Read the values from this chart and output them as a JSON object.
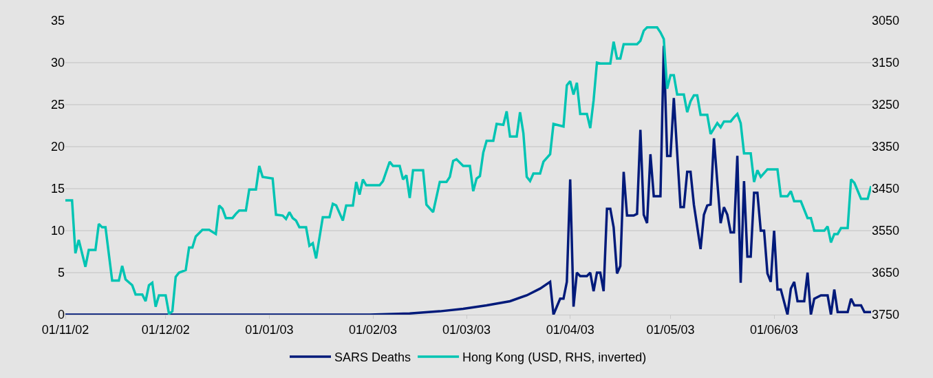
{
  "chart_data": {
    "type": "line",
    "ylim": [
      0,
      35
    ],
    "yticks": [
      0,
      5,
      10,
      15,
      20,
      25,
      30,
      35
    ],
    "y2lim": [
      3750,
      3050
    ],
    "y2ticks": [
      3050,
      3150,
      3250,
      3350,
      3450,
      3550,
      3650,
      3750
    ],
    "xlim": [
      "2002-11-01",
      "2003-06-30"
    ],
    "xticks": [
      {
        "value": "2002-11-01",
        "label": "01/11/02"
      },
      {
        "value": "2002-12-01",
        "label": "01/12/02"
      },
      {
        "value": "2003-01-01",
        "label": "01/01/03"
      },
      {
        "value": "2003-02-01",
        "label": "01/02/03"
      },
      {
        "value": "2003-03-01",
        "label": "01/03/03"
      },
      {
        "value": "2003-04-01",
        "label": "01/04/03"
      },
      {
        "value": "2003-05-01",
        "label": "01/05/03"
      },
      {
        "value": "2003-06-01",
        "label": "01/06/03"
      }
    ],
    "grid": "y",
    "legend": "bottom",
    "marker": "none",
    "line_style": "solid",
    "series": [
      {
        "name": "SARS Deaths",
        "color": "#001a7a",
        "x": [
          "2002-11-01",
          "2003-01-31",
          "2003-02-12",
          "2003-02-21",
          "2003-02-28",
          "2003-03-07",
          "2003-03-14",
          "2003-03-19",
          "2003-03-23",
          "2003-03-26",
          "2003-03-27",
          "2003-03-29",
          "2003-03-30",
          "2003-03-31",
          "2003-04-01",
          "2003-04-02",
          "2003-04-03",
          "2003-04-04",
          "2003-04-06",
          "2003-04-07",
          "2003-04-08",
          "2003-04-09",
          "2003-04-10",
          "2003-04-11",
          "2003-04-12",
          "2003-04-13",
          "2003-04-14",
          "2003-04-15",
          "2003-04-16",
          "2003-04-17",
          "2003-04-18",
          "2003-04-20",
          "2003-04-21",
          "2003-04-22",
          "2003-04-23",
          "2003-04-24",
          "2003-04-25",
          "2003-04-26",
          "2003-04-28",
          "2003-04-29",
          "2003-04-30",
          "2003-05-01",
          "2003-05-02",
          "2003-05-04",
          "2003-05-05",
          "2003-05-06",
          "2003-05-07",
          "2003-05-08",
          "2003-05-10",
          "2003-05-11",
          "2003-05-12",
          "2003-05-13",
          "2003-05-14",
          "2003-05-15",
          "2003-05-16",
          "2003-05-17",
          "2003-05-18",
          "2003-05-19",
          "2003-05-20",
          "2003-05-21",
          "2003-05-22",
          "2003-05-23",
          "2003-05-24",
          "2003-05-25",
          "2003-05-26",
          "2003-05-27",
          "2003-05-28",
          "2003-05-29",
          "2003-05-30",
          "2003-05-31",
          "2003-06-01",
          "2003-06-02",
          "2003-06-03",
          "2003-06-05",
          "2003-06-06",
          "2003-06-07",
          "2003-06-08",
          "2003-06-10",
          "2003-06-11",
          "2003-06-12",
          "2003-06-13",
          "2003-06-15",
          "2003-06-17",
          "2003-06-18",
          "2003-06-19",
          "2003-06-20",
          "2003-06-23",
          "2003-06-24",
          "2003-06-25",
          "2003-06-27",
          "2003-06-28",
          "2003-06-30"
        ],
        "values": [
          0,
          0,
          0.15,
          0.4,
          0.7,
          1.1,
          1.6,
          2.3,
          3.1,
          3.9,
          0,
          1.9,
          1.9,
          3.9,
          16.1,
          0.95,
          5.0,
          4.6,
          4.6,
          5.0,
          2.8,
          5.0,
          5.0,
          2.8,
          12.6,
          12.6,
          10.4,
          4.9,
          5.8,
          17.0,
          11.8,
          11.8,
          12.0,
          22.0,
          11.9,
          10.9,
          19.1,
          14.1,
          14.1,
          32.0,
          18.9,
          18.9,
          25.8,
          12.8,
          12.8,
          17.0,
          17.0,
          13.1,
          7.8,
          11.9,
          13.0,
          13.1,
          21.0,
          15.8,
          10.9,
          12.8,
          11.9,
          9.8,
          9.8,
          18.9,
          3.8,
          15.9,
          6.9,
          6.9,
          14.5,
          14.5,
          10.0,
          10.0,
          4.9,
          3.9,
          10.0,
          3.0,
          3.0,
          0,
          3.1,
          3.9,
          1.6,
          1.6,
          5.0,
          0,
          1.9,
          2.3,
          2.3,
          0,
          3.0,
          0.3,
          0.3,
          1.9,
          1.1,
          1.1,
          0.3,
          0.3
        ]
      },
      {
        "name": "Hong Kong (USD, RHS, inverted)",
        "color": "#00c4b3",
        "axis": "y2",
        "x": [
          "2002-11-01",
          "2002-11-03",
          "2002-11-04",
          "2002-11-05",
          "2002-11-07",
          "2002-11-08",
          "2002-11-10",
          "2002-11-11",
          "2002-11-12",
          "2002-11-13",
          "2002-11-15",
          "2002-11-17",
          "2002-11-18",
          "2002-11-19",
          "2002-11-21",
          "2002-11-22",
          "2002-11-24",
          "2002-11-25",
          "2002-11-26",
          "2002-11-27",
          "2002-11-28",
          "2002-11-29",
          "2002-12-01",
          "2002-12-02",
          "2002-12-03",
          "2002-12-04",
          "2002-12-05",
          "2002-12-07",
          "2002-12-08",
          "2002-12-09",
          "2002-12-10",
          "2002-12-12",
          "2002-12-14",
          "2002-12-16",
          "2002-12-17",
          "2002-12-18",
          "2002-12-19",
          "2002-12-21",
          "2002-12-22",
          "2002-12-23",
          "2002-12-25",
          "2002-12-26",
          "2002-12-28",
          "2002-12-29",
          "2002-12-30",
          "2003-01-02",
          "2003-01-03",
          "2003-01-05",
          "2003-01-06",
          "2003-01-07",
          "2003-01-08",
          "2003-01-09",
          "2003-01-10",
          "2003-01-12",
          "2003-01-13",
          "2003-01-14",
          "2003-01-15",
          "2003-01-17",
          "2003-01-19",
          "2003-01-20",
          "2003-01-21",
          "2003-01-23",
          "2003-01-24",
          "2003-01-26",
          "2003-01-27",
          "2003-01-28",
          "2003-01-29",
          "2003-01-30",
          "2003-02-03",
          "2003-02-04",
          "2003-02-06",
          "2003-02-07",
          "2003-02-09",
          "2003-02-10",
          "2003-02-11",
          "2003-02-12",
          "2003-02-13",
          "2003-02-16",
          "2003-02-17",
          "2003-02-19",
          "2003-02-21",
          "2003-02-23",
          "2003-02-24",
          "2003-02-25",
          "2003-02-26",
          "2003-02-28",
          "2003-03-02",
          "2003-03-03",
          "2003-03-04",
          "2003-03-05",
          "2003-03-06",
          "2003-03-07",
          "2003-03-09",
          "2003-03-10",
          "2003-03-12",
          "2003-03-13",
          "2003-03-14",
          "2003-03-16",
          "2003-03-17",
          "2003-03-18",
          "2003-03-19",
          "2003-03-20",
          "2003-03-21",
          "2003-03-23",
          "2003-03-24",
          "2003-03-26",
          "2003-03-27",
          "2003-03-30",
          "2003-03-31",
          "2003-04-01",
          "2003-04-02",
          "2003-04-03",
          "2003-04-04",
          "2003-04-06",
          "2003-04-07",
          "2003-04-08",
          "2003-04-09",
          "2003-04-10",
          "2003-04-13",
          "2003-04-14",
          "2003-04-15",
          "2003-04-16",
          "2003-04-17",
          "2003-04-21",
          "2003-04-22",
          "2003-04-23",
          "2003-04-24",
          "2003-04-27",
          "2003-04-28",
          "2003-04-29",
          "2003-04-30",
          "2003-05-01",
          "2003-05-02",
          "2003-05-03",
          "2003-05-05",
          "2003-05-06",
          "2003-05-07",
          "2003-05-08",
          "2003-05-09",
          "2003-05-10",
          "2003-05-12",
          "2003-05-13",
          "2003-05-15",
          "2003-05-16",
          "2003-05-17",
          "2003-05-19",
          "2003-05-20",
          "2003-05-21",
          "2003-05-22",
          "2003-05-23",
          "2003-05-25",
          "2003-05-26",
          "2003-05-27",
          "2003-05-28",
          "2003-05-30",
          "2003-06-02",
          "2003-06-03",
          "2003-06-05",
          "2003-06-06",
          "2003-06-07",
          "2003-06-09",
          "2003-06-11",
          "2003-06-12",
          "2003-06-13",
          "2003-06-16",
          "2003-06-17",
          "2003-06-18",
          "2003-06-19",
          "2003-06-20",
          "2003-06-21",
          "2003-06-23",
          "2003-06-24",
          "2003-06-25",
          "2003-06-27",
          "2003-06-29",
          "2003-06-30"
        ],
        "values": [
          3478,
          3478,
          3604,
          3572,
          3636,
          3596,
          3596,
          3534,
          3542,
          3542,
          3669,
          3669,
          3634,
          3666,
          3680,
          3702,
          3702,
          3718,
          3680,
          3674,
          3731,
          3704,
          3704,
          3748,
          3742,
          3660,
          3650,
          3644,
          3590,
          3590,
          3564,
          3548,
          3548,
          3558,
          3490,
          3498,
          3520,
          3520,
          3510,
          3502,
          3502,
          3452,
          3452,
          3396,
          3422,
          3426,
          3512,
          3514,
          3522,
          3506,
          3520,
          3526,
          3542,
          3542,
          3586,
          3580,
          3616,
          3518,
          3518,
          3486,
          3490,
          3526,
          3490,
          3490,
          3434,
          3464,
          3428,
          3442,
          3442,
          3432,
          3386,
          3396,
          3396,
          3428,
          3418,
          3472,
          3406,
          3406,
          3488,
          3506,
          3434,
          3434,
          3422,
          3384,
          3380,
          3396,
          3396,
          3456,
          3426,
          3420,
          3364,
          3336,
          3336,
          3296,
          3298,
          3266,
          3326,
          3326,
          3268,
          3318,
          3422,
          3432,
          3414,
          3414,
          3386,
          3368,
          3296,
          3302,
          3204,
          3194,
          3226,
          3198,
          3272,
          3272,
          3306,
          3240,
          3150,
          3152,
          3152,
          3100,
          3140,
          3140,
          3106,
          3106,
          3098,
          3074,
          3066,
          3066,
          3078,
          3094,
          3212,
          3180,
          3180,
          3226,
          3226,
          3268,
          3242,
          3228,
          3228,
          3274,
          3274,
          3320,
          3294,
          3304,
          3290,
          3290,
          3280,
          3272,
          3294,
          3366,
          3366,
          3434,
          3406,
          3422,
          3404,
          3404,
          3468,
          3468,
          3456,
          3480,
          3480,
          3520,
          3520,
          3550,
          3550,
          3540,
          3578,
          3558,
          3558,
          3544,
          3544,
          3428,
          3436,
          3474,
          3474,
          3444
        ]
      }
    ]
  }
}
